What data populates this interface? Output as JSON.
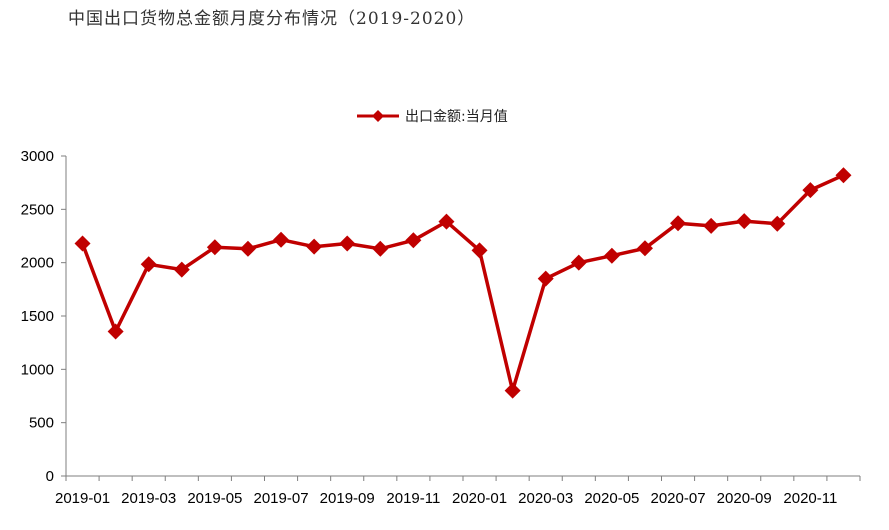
{
  "title": "中国出口货物总金额月度分布情况（2019-2020）",
  "colors": {
    "series": "#c00000",
    "axis": "#7f7f7f"
  },
  "chart_data": {
    "type": "line",
    "x": [
      "2019-01",
      "2019-02",
      "2019-03",
      "2019-04",
      "2019-05",
      "2019-06",
      "2019-07",
      "2019-08",
      "2019-09",
      "2019-10",
      "2019-11",
      "2019-12",
      "2020-01",
      "2020-02",
      "2020-03",
      "2020-04",
      "2020-05",
      "2020-06",
      "2020-07",
      "2020-08",
      "2020-09",
      "2020-10",
      "2020-11",
      "2020-12"
    ],
    "x_tick_labels": [
      "2019-01",
      "2019-03",
      "2019-05",
      "2019-07",
      "2019-09",
      "2019-11",
      "2020-01",
      "2020-03",
      "2020-05",
      "2020-07",
      "2020-09",
      "2020-11"
    ],
    "series": [
      {
        "name": "出口金额:当月值",
        "values": [
          2180,
          1355,
          1985,
          1935,
          2145,
          2130,
          2215,
          2150,
          2180,
          2130,
          2210,
          2385,
          2115,
          800,
          1850,
          2000,
          2065,
          2135,
          2370,
          2345,
          2390,
          2365,
          2680,
          2820
        ]
      }
    ],
    "y_ticks": [
      0,
      500,
      1000,
      1500,
      2000,
      2500,
      3000
    ],
    "ylim": [
      0,
      3000
    ],
    "legend_position": "top-center",
    "grid": false
  }
}
